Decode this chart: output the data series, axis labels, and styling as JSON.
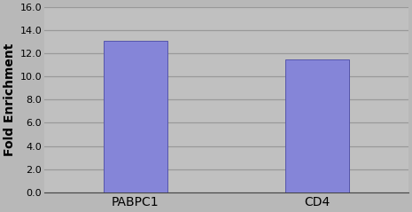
{
  "categories": [
    "PABPC1",
    "CD4"
  ],
  "values": [
    13.1,
    11.5
  ],
  "bar_color": "#8585d8",
  "bar_edge_color": "#5555aa",
  "ylabel": "Fold Enrichment",
  "ylim": [
    0,
    16.0
  ],
  "yticks": [
    0.0,
    2.0,
    4.0,
    6.0,
    8.0,
    10.0,
    12.0,
    14.0,
    16.0
  ],
  "background_color": "#b8b8b8",
  "plot_bg_color": "#c0c0c0",
  "grid_color": "#999999",
  "ylabel_fontsize": 10,
  "ylabel_fontweight": "bold",
  "tick_fontsize": 8,
  "bar_width": 0.35,
  "xlim": [
    -0.5,
    1.5
  ]
}
